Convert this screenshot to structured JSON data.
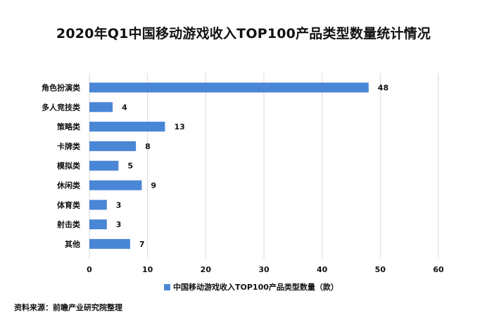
{
  "title": "2020年Q1中国移动游戏收入TOP100产品类型数量统计情况",
  "source": "资料来源：前瞻产业研究院整理",
  "colors": {
    "bar": "#4a86d6",
    "grid": "#d9d9d9"
  },
  "chart_data": {
    "type": "bar",
    "orientation": "horizontal",
    "title": "2020年Q1中国移动游戏收入TOP100产品类型数量统计情况",
    "categories": [
      "角色扮演类",
      "多人竞技类",
      "策略类",
      "卡牌类",
      "模拟类",
      "休闲类",
      "体育类",
      "射击类",
      "其他"
    ],
    "series": [
      {
        "name": "中国移动游戏收入TOP100产品类型数量（款）",
        "values": [
          48,
          4,
          13,
          8,
          5,
          9,
          3,
          3,
          7
        ]
      }
    ],
    "xlim": [
      0,
      60
    ],
    "xticks": [
      0,
      10,
      20,
      30,
      40,
      50,
      60
    ],
    "grid": true,
    "legend_position": "bottom",
    "data_labels": true
  }
}
